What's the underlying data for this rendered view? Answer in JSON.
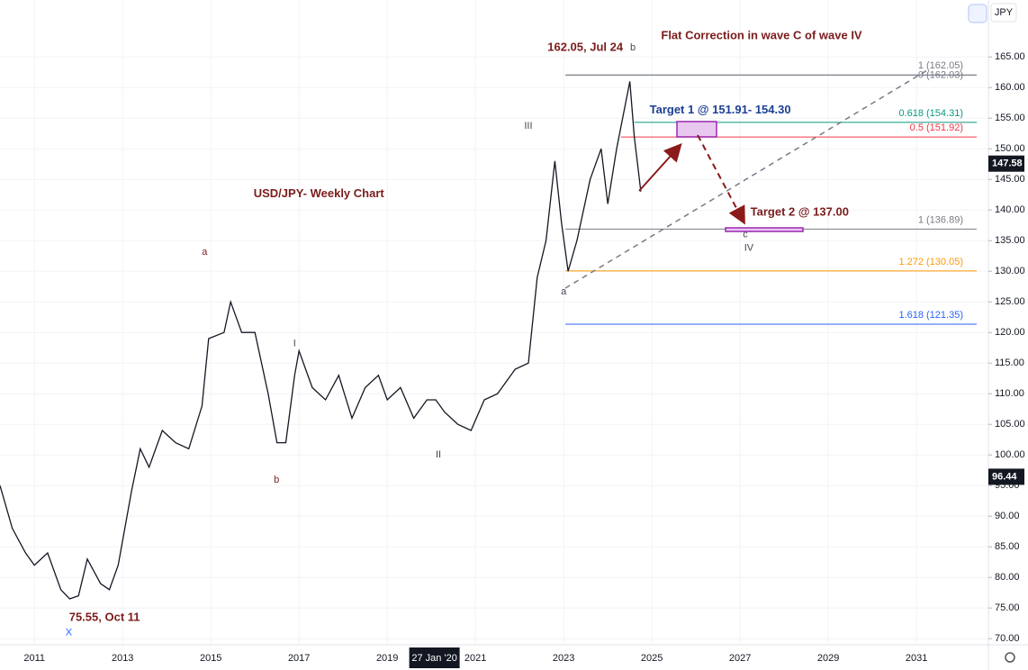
{
  "chart_data": {
    "type": "line",
    "title": "Flat Correction in wave C of wave IV",
    "currency": "JPY",
    "x": [
      2010.22,
      2010.5,
      2010.8,
      2011.0,
      2011.3,
      2011.6,
      2011.8,
      2012.0,
      2012.2,
      2012.5,
      2012.7,
      2012.9,
      2013.2,
      2013.4,
      2013.6,
      2013.9,
      2014.2,
      2014.5,
      2014.8,
      2014.95,
      2015.3,
      2015.45,
      2015.7,
      2016.0,
      2016.3,
      2016.5,
      2016.7,
      2016.9,
      2017.0,
      2017.3,
      2017.6,
      2017.9,
      2018.2,
      2018.5,
      2018.8,
      2019.0,
      2019.3,
      2019.6,
      2019.9,
      2020.1,
      2020.3,
      2020.6,
      2020.9,
      2021.2,
      2021.5,
      2021.9,
      2022.2,
      2022.4,
      2022.6,
      2022.8,
      2022.95,
      2023.1,
      2023.3,
      2023.6,
      2023.85,
      2024.0,
      2024.2,
      2024.5,
      2024.6,
      2024.7,
      2024.75
    ],
    "values": [
      95,
      88,
      84,
      82,
      84,
      78,
      76.5,
      77,
      83,
      79,
      78,
      82,
      94,
      101,
      98,
      104,
      102,
      101,
      108,
      119,
      120,
      125,
      120,
      120,
      110,
      102,
      102,
      113,
      117,
      111,
      109,
      113,
      106,
      111,
      113,
      109,
      111,
      106,
      109,
      109,
      107,
      105,
      104,
      109,
      110,
      114,
      115,
      129,
      135,
      148,
      138,
      130,
      135,
      145,
      150,
      141,
      150,
      161,
      152,
      146,
      143
    ],
    "color": "#131722",
    "xlim": [
      2010.22,
      2032.63
    ],
    "xticks": [
      2011,
      2013,
      2015,
      2017,
      2019,
      2021,
      2023,
      2025,
      2027,
      2029,
      2031
    ],
    "x_marker": {
      "value": 2020.07,
      "label": "27 Jan '20"
    },
    "ylim": [
      69,
      174.3
    ],
    "yticks": [
      {
        "value": 70,
        "label": "70.00"
      },
      {
        "value": 75,
        "label": "75.00"
      },
      {
        "value": 80,
        "label": "80.00"
      },
      {
        "value": 85,
        "label": "85.00"
      },
      {
        "value": 90,
        "label": "90.00"
      },
      {
        "value": 95,
        "label": "95.00"
      },
      {
        "value": 100,
        "label": "100.00"
      },
      {
        "value": 105,
        "label": "105.00"
      },
      {
        "value": 110,
        "label": "110.00"
      },
      {
        "value": 115,
        "label": "115.00"
      },
      {
        "value": 120,
        "label": "120.00"
      },
      {
        "value": 125,
        "label": "125.00"
      },
      {
        "value": 130,
        "label": "130.00"
      },
      {
        "value": 135,
        "label": "135.00"
      },
      {
        "value": 140,
        "label": "140.00"
      },
      {
        "value": 145,
        "label": "145.00"
      },
      {
        "value": 150,
        "label": "150.00"
      },
      {
        "value": 155,
        "label": "155.00"
      },
      {
        "value": 160,
        "label": "160.00"
      },
      {
        "value": 165,
        "label": "165.00"
      }
    ],
    "grid": true,
    "price_tags": [
      147.58,
      96.44
    ],
    "levels": [
      {
        "label": "1 (162.05)",
        "value": 162.05,
        "from": 2023.04,
        "color": "#787b86"
      },
      {
        "label": "0 (162.03)",
        "value": 162.03,
        "from": 2023.04,
        "color": "#787b86"
      },
      {
        "label": "0.618 (154.31)",
        "value": 154.31,
        "from": 2024.6,
        "color": "#089981"
      },
      {
        "label": "0.5 (151.92)",
        "value": 151.92,
        "from": 2024.3,
        "color": "#f23645"
      },
      {
        "label": "1 (136.89)",
        "value": 136.89,
        "from": 2023.04,
        "color": "#787b86"
      },
      {
        "label": "1.272 (130.05)",
        "value": 130.05,
        "from": 2023.04,
        "color": "#ff9800"
      },
      {
        "label": "1.618 (121.35)",
        "value": 121.35,
        "from": 2023.04,
        "color": "#2962ff"
      }
    ],
    "annotations": [
      {
        "text": "162.05, Jul 24",
        "x": 2023.49,
        "y": 166.5,
        "color": "#7b1c1c"
      },
      {
        "text": "b",
        "x": 2024.57,
        "y": 166.5,
        "color": "#434651"
      },
      {
        "text": "III",
        "x": 2022.2,
        "y": 153.7,
        "color": "#434651"
      },
      {
        "text": "a",
        "x": 2014.86,
        "y": 133.1,
        "color": "#7b1c1c"
      },
      {
        "text": "I",
        "x": 2016.9,
        "y": 118.2,
        "color": "#434651"
      },
      {
        "text": "b",
        "x": 2016.49,
        "y": 95.9,
        "color": "#7b1c1c"
      },
      {
        "text": "II",
        "x": 2020.16,
        "y": 100.0,
        "color": "#434651"
      },
      {
        "text": "a",
        "x": 2023.0,
        "y": 126.6,
        "color": "#434651"
      },
      {
        "text": "c",
        "x": 2027.12,
        "y": 136.0,
        "color": "#434651"
      },
      {
        "text": "IV",
        "x": 2027.2,
        "y": 133.8,
        "color": "#434651"
      },
      {
        "text": "75.55, Oct 11",
        "x": 2012.59,
        "y": 73.4,
        "color": "#7b1c1c"
      },
      {
        "text": "X",
        "x": 2011.78,
        "y": 71.0,
        "color": "#2962ff"
      },
      {
        "text": "USD/JPY- Weekly Chart",
        "x": 2017.45,
        "y": 142.6,
        "color": "#7b1c1c"
      },
      {
        "text": "Target 1 @ 151.91- 154.30",
        "x": 2026.55,
        "y": 156.3,
        "color": "#1c3f94"
      },
      {
        "text": "Target 2 @ 137.00",
        "x": 2028.35,
        "y": 139.6,
        "color": "#7b1c1c"
      }
    ]
  }
}
